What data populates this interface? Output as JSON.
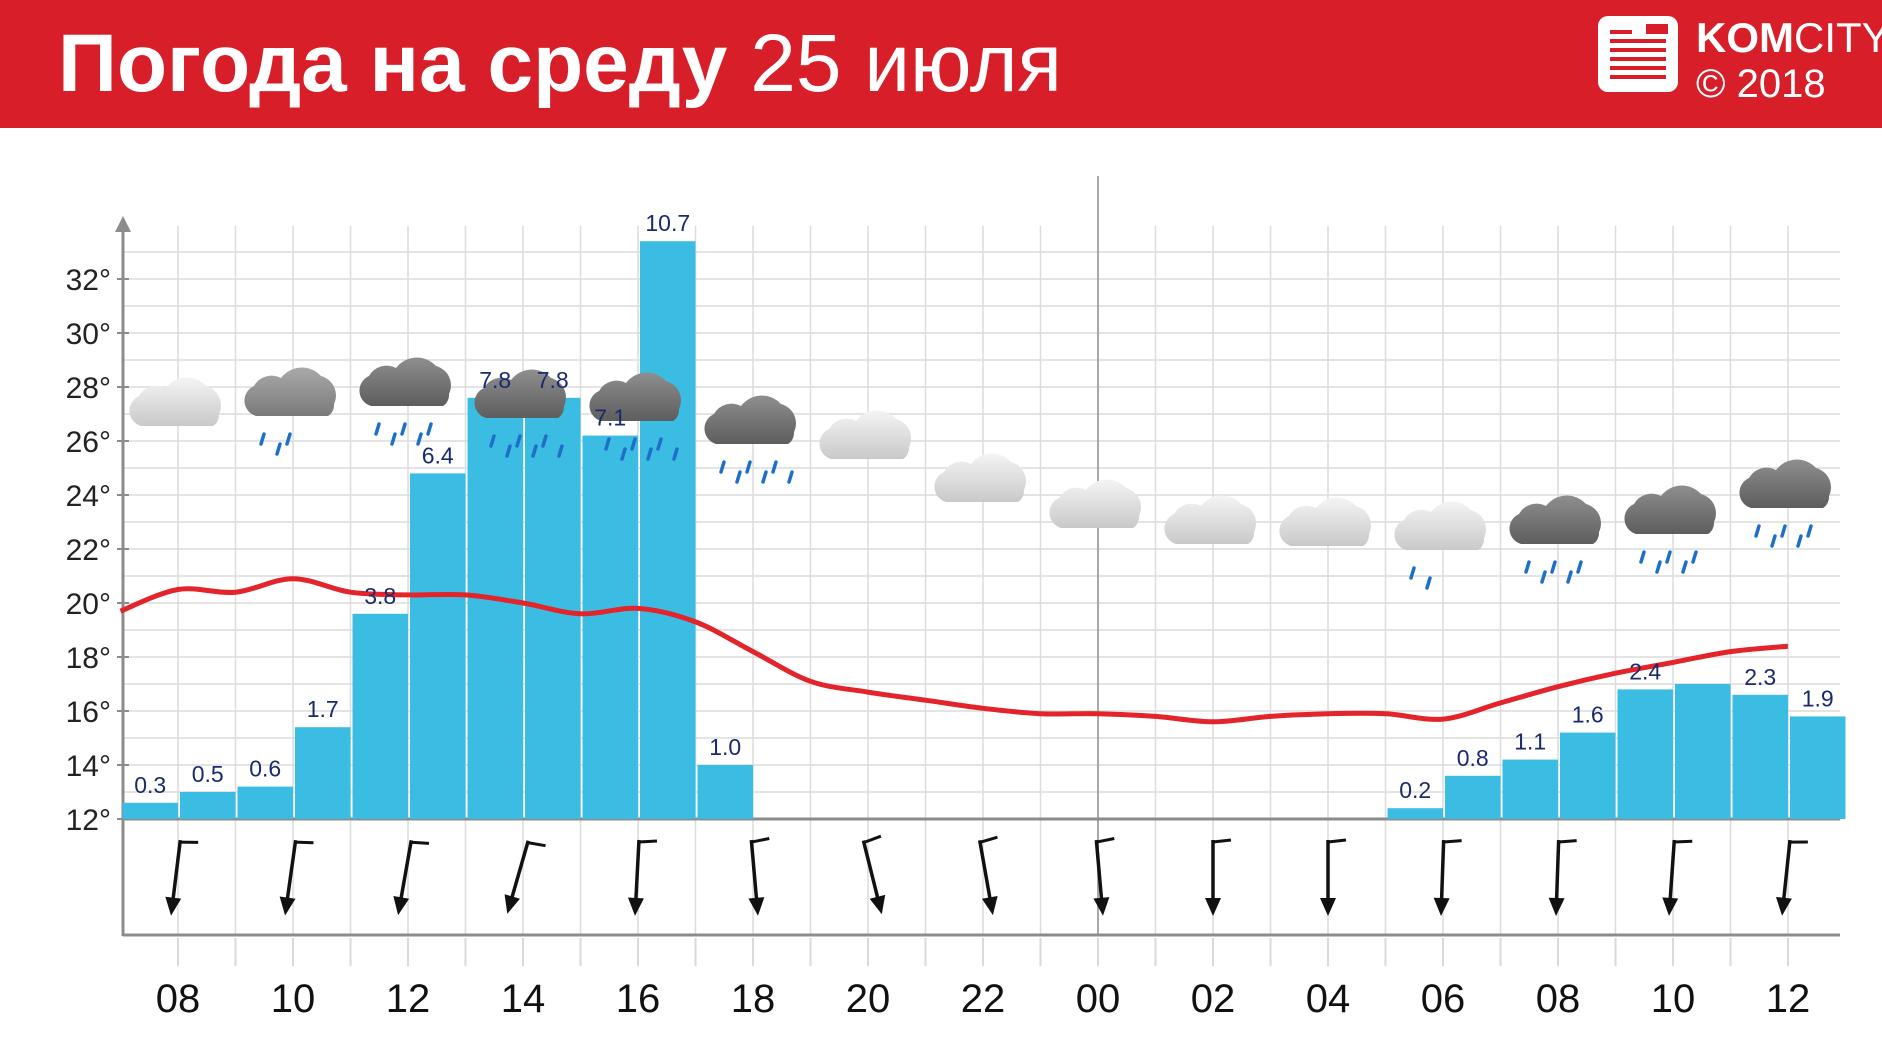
{
  "header": {
    "title_bold": "Погода на среду",
    "title_regular": "25 июля",
    "logo_brand_bold": "KOM",
    "logo_brand_regular": "CITY",
    "logo_copyright": "© 2018"
  },
  "colors": {
    "header_bg": "#d81e28",
    "bar": "#3bbde3",
    "temperature_line": "#e3242b",
    "precip_label": "#1a2a6c",
    "rain_drops": "#1e6fc8",
    "grid": "#dcdcdc",
    "axis": "#8c8c8c"
  },
  "chart_data": {
    "type": "bar",
    "x_tick_labels": [
      "08",
      "10",
      "12",
      "14",
      "16",
      "18",
      "20",
      "22",
      "00",
      "02",
      "04",
      "06",
      "08",
      "10",
      "12"
    ],
    "y_tick_labels": [
      "12°",
      "14°",
      "16°",
      "18°",
      "20°",
      "22°",
      "24°",
      "26°",
      "28°",
      "30°",
      "32°"
    ],
    "ylim": [
      12,
      33
    ],
    "grid": true,
    "precipitation": {
      "values": [
        0.3,
        0.5,
        0.6,
        1.7,
        3.8,
        6.4,
        7.8,
        7.8,
        7.1,
        10.7,
        1.0,
        0,
        0,
        0,
        0,
        0,
        0,
        0,
        0,
        0,
        0,
        0,
        0.2,
        0.8,
        1.1,
        1.6,
        2.4,
        2.5,
        2.3,
        1.9
      ],
      "labels": [
        "0.3",
        "0.5",
        "0.6",
        "1.7",
        "3.8",
        "6.4",
        "7.8",
        "7.8",
        "7.1",
        "10.7",
        "1.0",
        "",
        "",
        "",
        "",
        "",
        "",
        "",
        "",
        "",
        "",
        "",
        "0.2",
        "0.8",
        "1.1",
        "1.6",
        "2.4",
        "",
        "2.3",
        "1.9"
      ]
    },
    "temperature": {
      "x": [
        0,
        0.5,
        1,
        1.5,
        2,
        2.5,
        3,
        3.5,
        4,
        4.5,
        5,
        5.5,
        6,
        6.5,
        7,
        7.5,
        8,
        8.5,
        9,
        9.5,
        10,
        10.5,
        11,
        11.5,
        12,
        12.5,
        13,
        13.5,
        14,
        14.5
      ],
      "values": [
        19.7,
        20.5,
        20.4,
        20.9,
        20.4,
        20.3,
        20.3,
        20.0,
        19.6,
        19.8,
        19.3,
        18.2,
        17.1,
        16.7,
        16.4,
        16.1,
        15.9,
        15.9,
        15.8,
        15.6,
        15.8,
        15.9,
        15.9,
        15.7,
        16.3,
        16.9,
        17.4,
        17.8,
        18.2,
        18.4
      ]
    },
    "sky": [
      {
        "cloud": "light",
        "rain": 0
      },
      {
        "cloud": "medium",
        "rain": 3
      },
      {
        "cloud": "dark",
        "rain": 5
      },
      {
        "cloud": "dark",
        "rain": 6
      },
      {
        "cloud": "dark",
        "rain": 6
      },
      {
        "cloud": "dark",
        "rain": 6
      },
      {
        "cloud": "light",
        "rain": 0
      },
      {
        "cloud": "light",
        "rain": 0
      },
      {
        "cloud": "light",
        "rain": 0
      },
      {
        "cloud": "light",
        "rain": 0
      },
      {
        "cloud": "light",
        "rain": 0
      },
      {
        "cloud": "light",
        "rain": 2
      },
      {
        "cloud": "dark",
        "rain": 5
      },
      {
        "cloud": "dark",
        "rain": 5
      },
      {
        "cloud": "dark",
        "rain": 5
      }
    ],
    "wind_tilt_deg": [
      7,
      8,
      10,
      16,
      3,
      -5,
      -14,
      -10,
      -5,
      0,
      0,
      2,
      2,
      4,
      6
    ]
  }
}
